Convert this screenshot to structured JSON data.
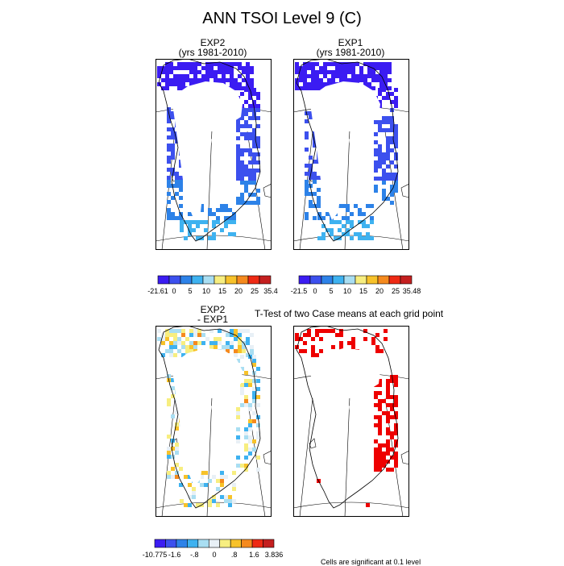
{
  "title": "ANN TSOI Level 9 (C)",
  "panels": {
    "exp2": {
      "name": "EXP2",
      "period": "(yrs 1981-2010)"
    },
    "exp1": {
      "name": "EXP1",
      "period": "(yrs 1981-2010)"
    },
    "diff": {
      "name": "EXP2",
      "minus": "- EXP1"
    },
    "ttest": {
      "title": "T-Test of two Case means at each grid point",
      "footer": "Cells are significant at 0.1 level"
    }
  },
  "chart_data": [
    {
      "type": "heatmap",
      "id": "exp2",
      "title": "EXP2 (yrs 1981-2010)",
      "colorbar": {
        "labels": [
          "-21.61",
          "0",
          "5",
          "10",
          "15",
          "20",
          "25",
          "35.4"
        ],
        "colors": [
          "#3b1cf2",
          "#3c50ee",
          "#2d82e8",
          "#3eb2f0",
          "#a9def2",
          "#f7ee80",
          "#f7c22a",
          "#f58a1e",
          "#ee2a14",
          "#c41f1f"
        ]
      }
    },
    {
      "type": "heatmap",
      "id": "exp1",
      "title": "EXP1 (yrs 1981-2010)",
      "colorbar": {
        "labels": [
          "-21.5",
          "0",
          "5",
          "10",
          "15",
          "20",
          "25",
          "35.48"
        ],
        "colors": [
          "#3b1cf2",
          "#3c50ee",
          "#2d82e8",
          "#3eb2f0",
          "#a9def2",
          "#f7ee80",
          "#f7c22a",
          "#f58a1e",
          "#ee2a14",
          "#c41f1f"
        ]
      }
    },
    {
      "type": "heatmap",
      "id": "diff",
      "title": "EXP2 - EXP1",
      "colorbar": {
        "labels": [
          "-10.775",
          "-1.6",
          "-.8",
          "0",
          ".8",
          "1.6",
          "3.836"
        ],
        "colors": [
          "#3b1cf2",
          "#3c50ee",
          "#2d82e8",
          "#3eb2f0",
          "#a9def2",
          "#e8f0f6",
          "#f7ee80",
          "#f7c22a",
          "#f58a1e",
          "#ee2a14",
          "#c41f1f"
        ]
      }
    },
    {
      "type": "heatmap",
      "id": "ttest",
      "title": "T-Test of two Case means at each grid point",
      "significant_color": "#ee0000"
    }
  ]
}
